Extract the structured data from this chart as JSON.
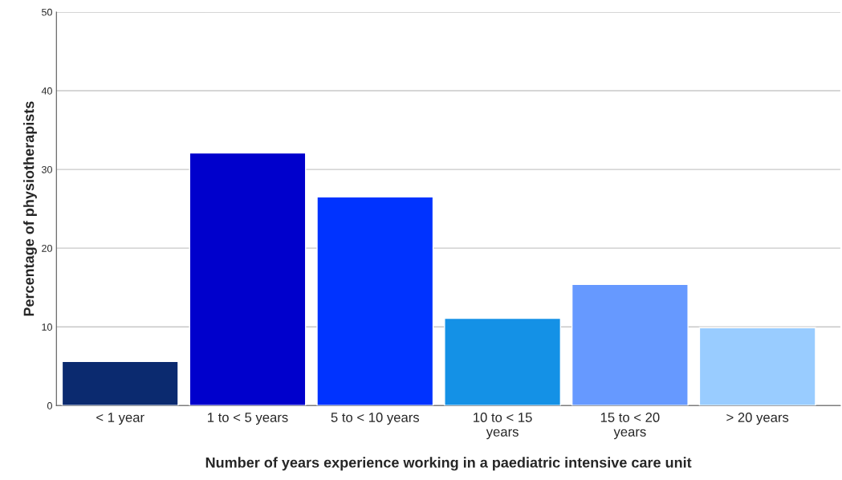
{
  "chart_data": {
    "type": "bar",
    "xlabel": "Number of years experience working in a paediatric intensive care unit",
    "ylabel": "Percentage of physiotherapists",
    "categories": [
      "< 1 year",
      "1 to < 5 years",
      "5 to < 10 years",
      "10 to < 15\nyears",
      "15 to < 20\nyears",
      "> 20 years"
    ],
    "values": [
      5.6,
      32.1,
      26.5,
      11.1,
      15.4,
      9.9
    ],
    "colors": [
      "#0b2a6f",
      "#0000cc",
      "#0033ff",
      "#1491e6",
      "#6699ff",
      "#99ccff"
    ],
    "ylim": [
      0,
      50
    ],
    "yticks": [
      0,
      10,
      20,
      30,
      40,
      50
    ],
    "grid": "y"
  }
}
